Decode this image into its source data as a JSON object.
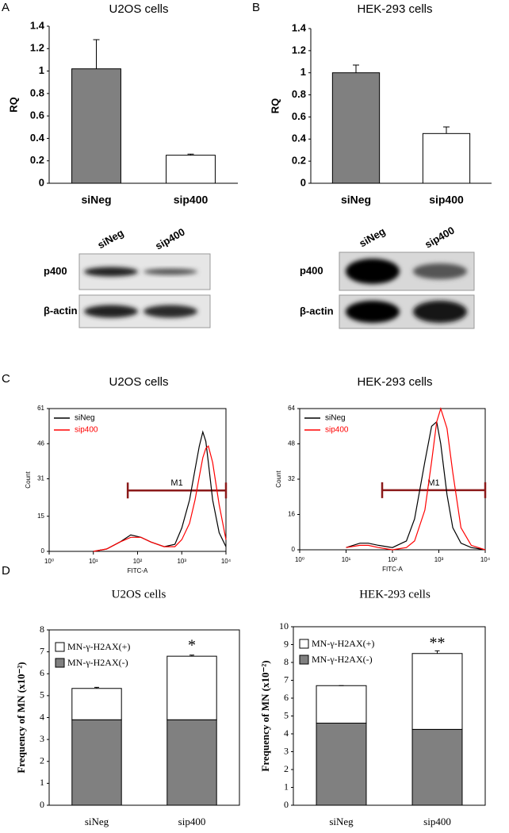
{
  "panel_labels": [
    "A",
    "B",
    "C",
    "D"
  ],
  "chart_data": [
    {
      "type": "bar",
      "title": "U2OS cells",
      "ylabel": "RQ",
      "categories": [
        "siNeg",
        "sip400"
      ],
      "values": [
        1.02,
        0.25
      ],
      "errors": [
        0.26,
        0.01
      ],
      "colors": [
        "#808080",
        "#ffffff"
      ],
      "ylim": [
        0,
        1.4
      ],
      "yticks": [
        0,
        0.2,
        0.4,
        0.6,
        0.8,
        1,
        1.2,
        1.4
      ]
    },
    {
      "type": "bar",
      "title": "HEK-293 cells",
      "ylabel": "RQ",
      "categories": [
        "siNeg",
        "sip400"
      ],
      "values": [
        1.0,
        0.45
      ],
      "errors": [
        0.07,
        0.06
      ],
      "colors": [
        "#808080",
        "#ffffff"
      ],
      "ylim": [
        0,
        1.4
      ],
      "yticks": [
        0,
        0.2,
        0.4,
        0.6,
        0.8,
        1,
        1.2,
        1.4
      ]
    },
    {
      "type": "line",
      "title": "U2OS cells",
      "xlabel": "FITC-A",
      "ylabel": "Count",
      "log_x": true,
      "xlim": [
        1,
        10000
      ],
      "xticks": [
        {
          "value": 1,
          "label": "10⁰"
        },
        {
          "value": 10,
          "label": "10¹"
        },
        {
          "value": 100,
          "label": "10²"
        },
        {
          "value": 1000,
          "label": "10³"
        },
        {
          "value": 10000,
          "label": "10⁴"
        }
      ],
      "ylim": [
        0,
        61
      ],
      "yticks": [
        0,
        15,
        31,
        46,
        61
      ],
      "series": [
        {
          "name": "siNeg",
          "color": "#000000",
          "x": [
            10,
            20,
            40,
            70,
            120,
            200,
            400,
            700,
            1000,
            1500,
            2000,
            2500,
            3000,
            3500,
            4000,
            5000,
            7000,
            10000
          ],
          "values": [
            0,
            1,
            4,
            7,
            6,
            4,
            2,
            3,
            10,
            22,
            35,
            45,
            51,
            47,
            38,
            22,
            8,
            2
          ]
        },
        {
          "name": "sip400",
          "color": "#ff0000",
          "x": [
            10,
            20,
            40,
            70,
            120,
            200,
            400,
            700,
            1000,
            1500,
            2000,
            2500,
            3000,
            3500,
            4000,
            5000,
            7000,
            10000
          ],
          "values": [
            0,
            1,
            4,
            6,
            6,
            4,
            2,
            2,
            5,
            12,
            22,
            32,
            40,
            44,
            45,
            38,
            20,
            5
          ]
        }
      ],
      "marker": {
        "label": "M1",
        "range": [
          60,
          10000
        ],
        "y": 26,
        "color": "#8b1a1a"
      }
    },
    {
      "type": "line",
      "title": "HEK-293 cells",
      "xlabel": "FITC-A",
      "ylabel": "Count",
      "log_x": true,
      "xlim": [
        1,
        10000
      ],
      "xticks": [
        {
          "value": 1,
          "label": "10⁰"
        },
        {
          "value": 10,
          "label": "10¹"
        },
        {
          "value": 100,
          "label": "10²"
        },
        {
          "value": 1000,
          "label": "10³"
        },
        {
          "value": 10000,
          "label": "10⁴"
        }
      ],
      "ylim": [
        0,
        64
      ],
      "yticks": [
        0,
        16,
        32,
        48,
        64
      ],
      "series": [
        {
          "name": "siNeg",
          "color": "#000000",
          "x": [
            10,
            20,
            30,
            50,
            100,
            200,
            300,
            500,
            700,
            900,
            1100,
            1500,
            2000,
            3000,
            5000,
            10000
          ],
          "values": [
            1,
            3,
            3,
            2,
            1,
            4,
            14,
            40,
            56,
            58,
            48,
            25,
            10,
            3,
            1,
            0
          ]
        },
        {
          "name": "sip400",
          "color": "#ff0000",
          "x": [
            10,
            20,
            30,
            50,
            100,
            200,
            300,
            500,
            700,
            900,
            1100,
            1500,
            2000,
            3000,
            5000,
            10000
          ],
          "values": [
            1,
            2,
            2,
            1,
            0,
            1,
            4,
            18,
            40,
            58,
            64,
            55,
            35,
            10,
            2,
            0
          ]
        }
      ],
      "marker": {
        "label": "M1",
        "range": [
          60,
          10000
        ],
        "y": 27,
        "color": "#8b1a1a"
      }
    },
    {
      "type": "stacked_bar",
      "title": "U2OS cells",
      "ylabel": "Frequency of MN (x10⁻²)",
      "categories": [
        "siNeg",
        "sip400"
      ],
      "series": [
        {
          "name": "MN-γ-H2AX(-)",
          "color": "#808080",
          "values": [
            3.9,
            3.9
          ],
          "errors": [
            0.1,
            0.35
          ]
        },
        {
          "name": "MN-γ-H2AX(+)",
          "color": "#ffffff",
          "values": [
            1.43,
            2.9
          ],
          "errors": [
            0.05,
            0.05
          ]
        }
      ],
      "ylim": [
        0,
        8
      ],
      "yticks": [
        0,
        1,
        2,
        3,
        4,
        5,
        6,
        7,
        8
      ],
      "annotations": [
        null,
        "*"
      ]
    },
    {
      "type": "stacked_bar",
      "title": "HEK-293 cells",
      "ylabel": "Frequency of MN (x10⁻²)",
      "categories": [
        "siNeg",
        "sip400"
      ],
      "series": [
        {
          "name": "MN-γ-H2AX(-)",
          "color": "#808080",
          "values": [
            4.6,
            4.25
          ],
          "errors": [
            0.2,
            0.55
          ]
        },
        {
          "name": "MN-γ-H2AX(+)",
          "color": "#ffffff",
          "values": [
            2.1,
            4.25
          ],
          "errors": [
            0,
            0.15
          ]
        }
      ],
      "ylim": [
        0,
        10
      ],
      "yticks": [
        0,
        1,
        2,
        3,
        4,
        5,
        6,
        7,
        8,
        9,
        10
      ],
      "annotations": [
        null,
        "**"
      ]
    }
  ],
  "blots": [
    {
      "lanes": [
        "siNeg",
        "sip400"
      ],
      "rows": [
        "p400",
        "β-actin"
      ]
    },
    {
      "lanes": [
        "siNeg",
        "sip400"
      ],
      "rows": [
        "p400",
        "β-actin"
      ]
    }
  ]
}
